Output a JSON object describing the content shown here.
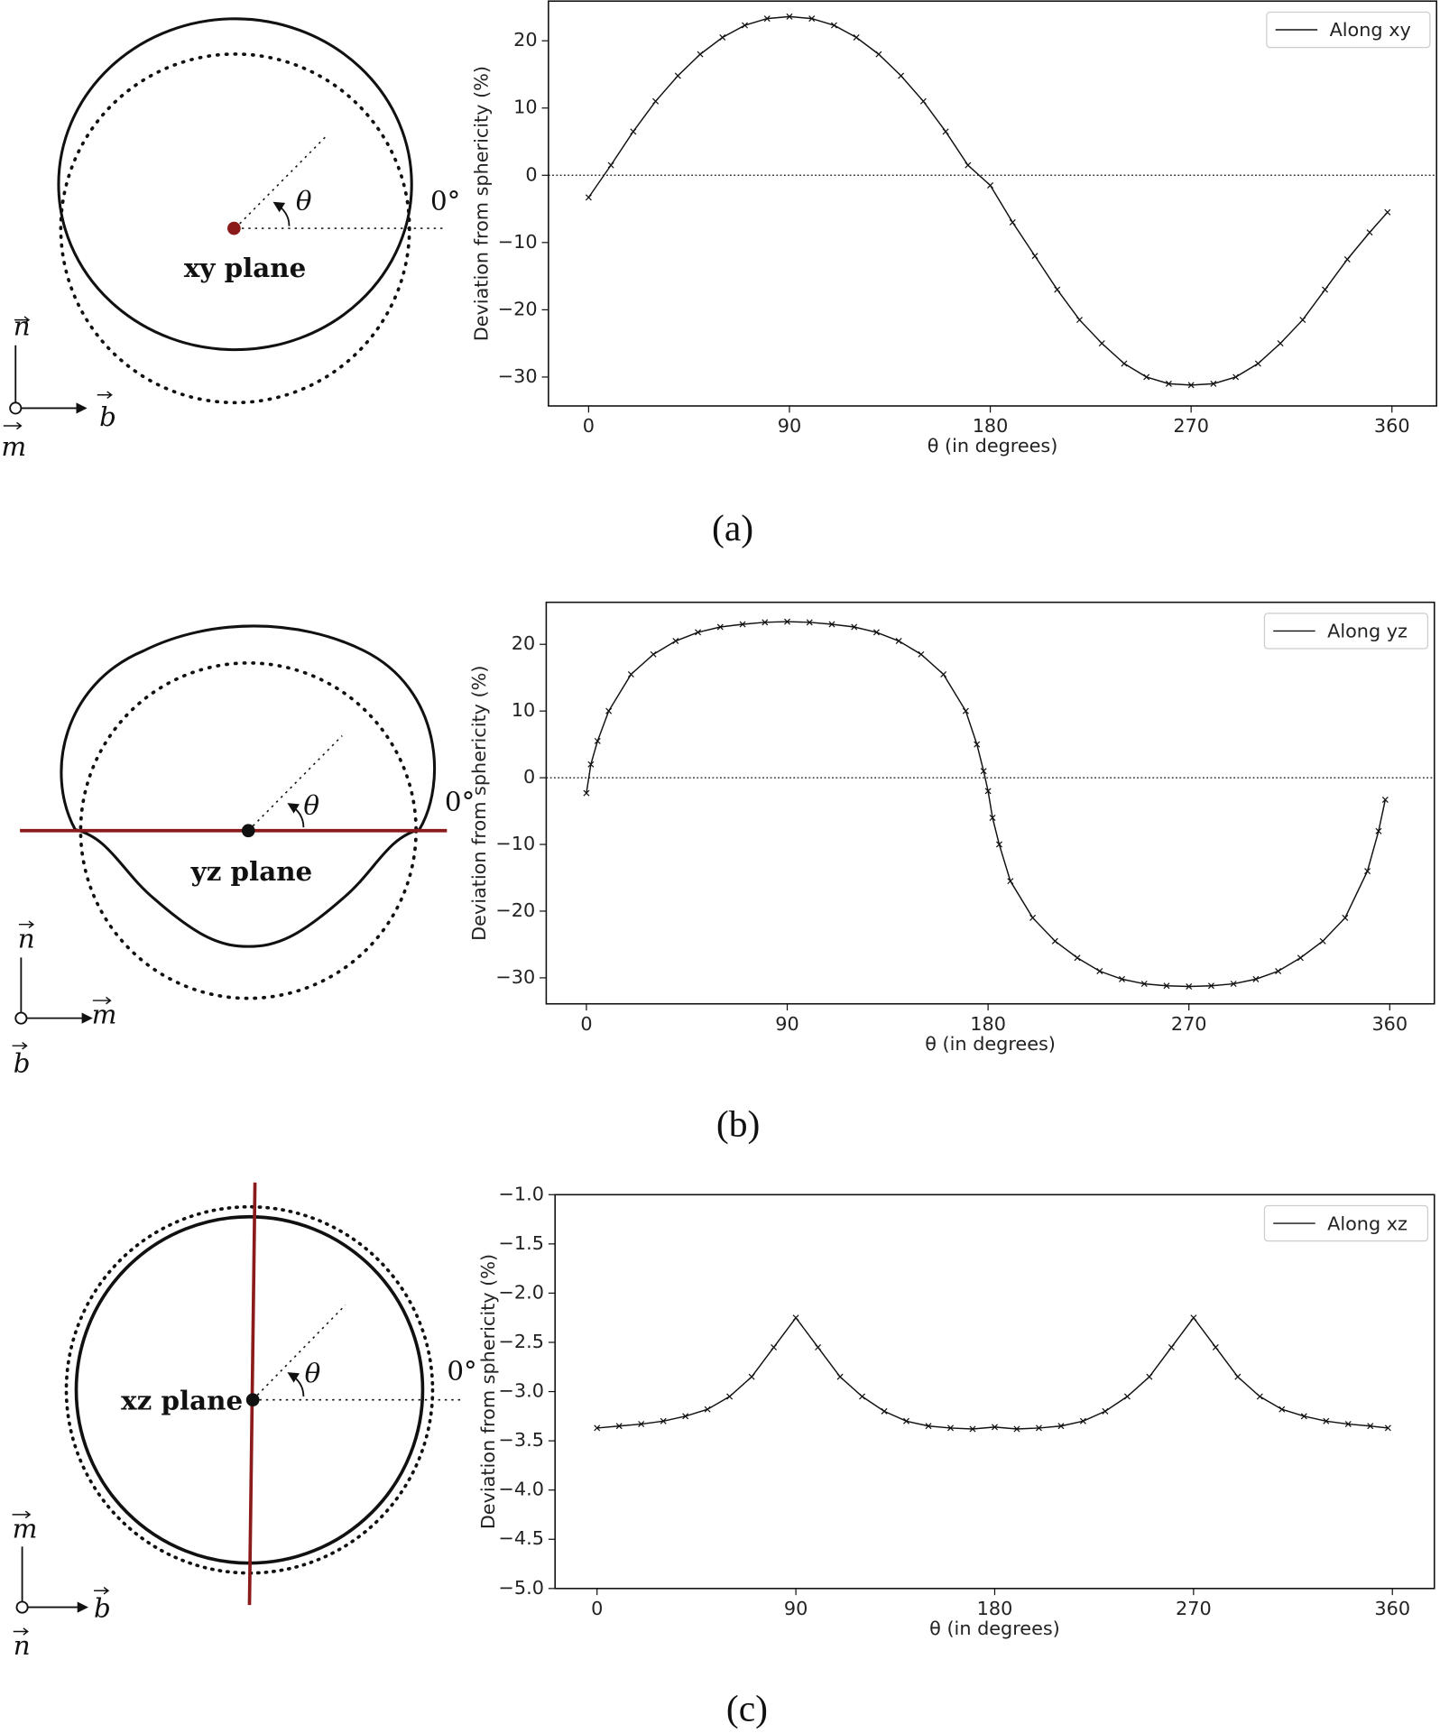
{
  "chart_data": [
    {
      "type": "line",
      "y_label": "Deviation from sphericity (%)",
      "x_label": "θ (in degrees)",
      "x": [
        0,
        10,
        20,
        30,
        40,
        50,
        60,
        70,
        80,
        90,
        100,
        110,
        120,
        130,
        140,
        150,
        160,
        170,
        180,
        190,
        200,
        210,
        220,
        230,
        240,
        250,
        260,
        270,
        280,
        290,
        300,
        310,
        320,
        330,
        340,
        350,
        358
      ],
      "series": [
        {
          "name": "Along xy",
          "color": "#111111",
          "values": [
            -3.3,
            1.5,
            6.5,
            11,
            14.8,
            18,
            20.5,
            22.3,
            23.3,
            23.6,
            23.3,
            22.3,
            20.5,
            18,
            14.8,
            11,
            6.5,
            1.5,
            -1.5,
            -7,
            -12,
            -17,
            -21.5,
            -25,
            -28,
            -30,
            -31,
            -31.2,
            -31,
            -30,
            -28,
            -25,
            -21.5,
            -17,
            -12.5,
            -8.5,
            -5.5
          ]
        }
      ],
      "xlim": [
        -18,
        380
      ],
      "ylim": [
        -34.3,
        25.9
      ],
      "xticks": [
        0,
        90,
        180,
        270,
        360
      ],
      "yticks": [
        {
          "value": -30,
          "label": "−30"
        },
        {
          "value": -20,
          "label": "−20"
        },
        {
          "value": -10,
          "label": "−10"
        },
        0,
        10,
        20
      ],
      "reference_line": 0,
      "legend": "upper right"
    },
    {
      "type": "line",
      "y_label": "Deviation from sphericity (%)",
      "x_label": "θ (in degrees)",
      "x": [
        0,
        2,
        5,
        10,
        20,
        30,
        40,
        50,
        60,
        70,
        80,
        90,
        100,
        110,
        120,
        130,
        140,
        150,
        160,
        170,
        175,
        178,
        180,
        182,
        185,
        190,
        200,
        210,
        220,
        230,
        240,
        250,
        260,
        270,
        280,
        290,
        300,
        310,
        320,
        330,
        340,
        350,
        355,
        358
      ],
      "series": [
        {
          "name": "Along yz",
          "color": "#111111",
          "values": [
            -2.3,
            2,
            5.5,
            10,
            15.5,
            18.5,
            20.5,
            21.8,
            22.6,
            23,
            23.3,
            23.4,
            23.3,
            23,
            22.6,
            21.8,
            20.5,
            18.5,
            15.5,
            10,
            5,
            1,
            -2,
            -6,
            -10,
            -15.5,
            -21,
            -24.5,
            -27,
            -29,
            -30.2,
            -30.9,
            -31.2,
            -31.3,
            -31.2,
            -30.9,
            -30.2,
            -29,
            -27,
            -24.5,
            -21,
            -14,
            -8,
            -3.3
          ]
        }
      ],
      "xlim": [
        -18,
        380
      ],
      "ylim": [
        -33.9,
        26.3
      ],
      "xticks": [
        0,
        90,
        180,
        270,
        360
      ],
      "yticks": [
        {
          "value": -30,
          "label": "−30"
        },
        {
          "value": -20,
          "label": "−20"
        },
        {
          "value": -10,
          "label": "−10"
        },
        0,
        10,
        20
      ],
      "reference_line": 0,
      "legend": "upper right"
    },
    {
      "type": "line",
      "y_label": "Deviation from sphericity (%)",
      "x_label": "θ (in degrees)",
      "x": [
        0,
        10,
        20,
        30,
        40,
        50,
        60,
        70,
        80,
        90,
        100,
        110,
        120,
        130,
        140,
        150,
        160,
        170,
        180,
        190,
        200,
        210,
        220,
        230,
        240,
        250,
        260,
        270,
        280,
        290,
        300,
        310,
        320,
        330,
        340,
        350,
        358
      ],
      "series": [
        {
          "name": "Along xz",
          "color": "#111111",
          "values": [
            -3.37,
            -3.35,
            -3.33,
            -3.3,
            -3.25,
            -3.18,
            -3.05,
            -2.85,
            -2.55,
            -2.25,
            -2.55,
            -2.85,
            -3.05,
            -3.2,
            -3.3,
            -3.35,
            -3.37,
            -3.38,
            -3.36,
            -3.38,
            -3.37,
            -3.35,
            -3.3,
            -3.2,
            -3.05,
            -2.85,
            -2.55,
            -2.25,
            -2.55,
            -2.85,
            -3.05,
            -3.18,
            -3.25,
            -3.3,
            -3.33,
            -3.35,
            -3.37
          ]
        }
      ],
      "xlim": [
        -19,
        379
      ],
      "ylim": [
        -5.0,
        -1.0
      ],
      "xticks": [
        0,
        90,
        180,
        270,
        360
      ],
      "yticks": [
        {
          "value": -5.0,
          "label": "−5.0"
        },
        {
          "value": -4.5,
          "label": "−4.5"
        },
        {
          "value": -4.0,
          "label": "−4.0"
        },
        {
          "value": -3.5,
          "label": "−3.5"
        },
        {
          "value": -3.0,
          "label": "−3.0"
        },
        {
          "value": -2.5,
          "label": "−2.5"
        },
        {
          "value": -2.0,
          "label": "−2.0"
        },
        {
          "value": -1.5,
          "label": "−1.5"
        },
        {
          "value": -1.0,
          "label": "−1.0"
        }
      ],
      "legend": "upper right"
    }
  ],
  "diagrams": [
    {
      "angle_label": "θ",
      "zero_label": "0°",
      "plane_label": "xy plane",
      "axis_labels": [
        "n",
        "b",
        "m"
      ]
    },
    {
      "angle_label": "θ",
      "zero_label": "0°",
      "plane_label": "yz plane",
      "axis_labels": [
        "n",
        "m",
        "b"
      ]
    },
    {
      "angle_label": "θ",
      "zero_label": "0°",
      "plane_label": "xz plane",
      "axis_labels": [
        "m",
        "b",
        "n"
      ]
    }
  ],
  "captions": [
    "(a)",
    "(b)",
    "(c)"
  ]
}
